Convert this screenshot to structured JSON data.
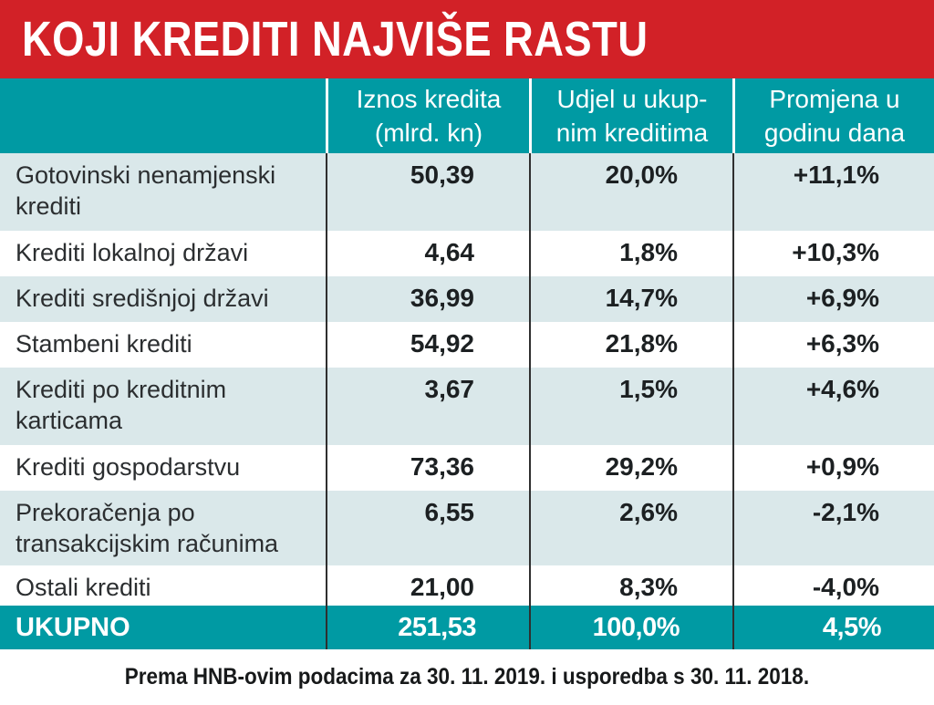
{
  "title": "KOJI KREDITI NAJVIŠE RASTU",
  "header": {
    "col2": {
      "line1": "Iznos kredita",
      "line2": "(mlrd. kn)"
    },
    "col3": {
      "line1": "Udjel u ukup-",
      "line2": "nim kreditima"
    },
    "col4": {
      "line1": "Promjena u",
      "line2": "godinu dana"
    }
  },
  "rows": [
    {
      "name": "Gotovinski nenamjenski krediti",
      "amount": "50,39",
      "share": "20,0%",
      "change": "+11,1%"
    },
    {
      "name": "Krediti lokalnoj državi",
      "amount": "4,64",
      "share": "1,8%",
      "change": "+10,3%"
    },
    {
      "name": "Krediti središnjoj državi",
      "amount": "36,99",
      "share": "14,7%",
      "change": "+6,9%"
    },
    {
      "name": "Stambeni krediti",
      "amount": "54,92",
      "share": "21,8%",
      "change": "+6,3%"
    },
    {
      "name": "Krediti po kreditnim karticama",
      "amount": "3,67",
      "share": "1,5%",
      "change": "+4,6%"
    },
    {
      "name": "Krediti gospodarstvu",
      "amount": "73,36",
      "share": "29,2%",
      "change": "+0,9%"
    },
    {
      "name": "Prekoračenja po transakcijskim računima",
      "amount": "6,55",
      "share": "2,6%",
      "change": "-2,1%"
    },
    {
      "name": "Ostali krediti",
      "amount": "21,00",
      "share": "8,3%",
      "change": "-4,0%"
    }
  ],
  "total": {
    "name": "UKUPNO",
    "amount": "251,53",
    "share": "100,0%",
    "change": "4,5%"
  },
  "footer": "Prema HNB-ovim podacima za 30. 11. 2019. i usporedba s 30. 11. 2018.",
  "colors": {
    "banner_red": "#d22127",
    "teal": "#009aa3",
    "row_alt_blue": "#dae8ea",
    "divider_dark": "#2f2f2f",
    "header_divider_white": "#ffffff"
  },
  "chart_data": {
    "type": "table",
    "title": "KOJI KREDITI NAJVIŠE RASTU",
    "columns": [
      "",
      "Iznos kredita (mlrd. kn)",
      "Udjel u ukupnim kreditima",
      "Promjena u godinu dana"
    ],
    "categories": [
      "Gotovinski nenamjenski krediti",
      "Krediti lokalnoj državi",
      "Krediti središnjoj državi",
      "Stambeni krediti",
      "Krediti po kreditnim karticama",
      "Krediti gospodarstvu",
      "Prekoračenja po transakcijskim računima",
      "Ostali krediti"
    ],
    "series": [
      {
        "name": "Iznos kredita (mlrd. kn)",
        "values": [
          50.39,
          4.64,
          36.99,
          54.92,
          3.67,
          73.36,
          6.55,
          21.0
        ]
      },
      {
        "name": "Udjel u ukupnim kreditima (%)",
        "values": [
          20.0,
          1.8,
          14.7,
          21.8,
          1.5,
          29.2,
          2.6,
          8.3
        ]
      },
      {
        "name": "Promjena u godinu dana (%)",
        "values": [
          11.1,
          10.3,
          6.9,
          6.3,
          4.6,
          0.9,
          -2.1,
          -4.0
        ]
      }
    ],
    "total": {
      "name": "UKUPNO",
      "iznos_mlrd_kn": 251.53,
      "udjel_pct": 100.0,
      "promjena_pct": 4.5
    },
    "note": "Prema HNB-ovim podacima za 30. 11. 2019. i usporedba s 30. 11. 2018."
  }
}
